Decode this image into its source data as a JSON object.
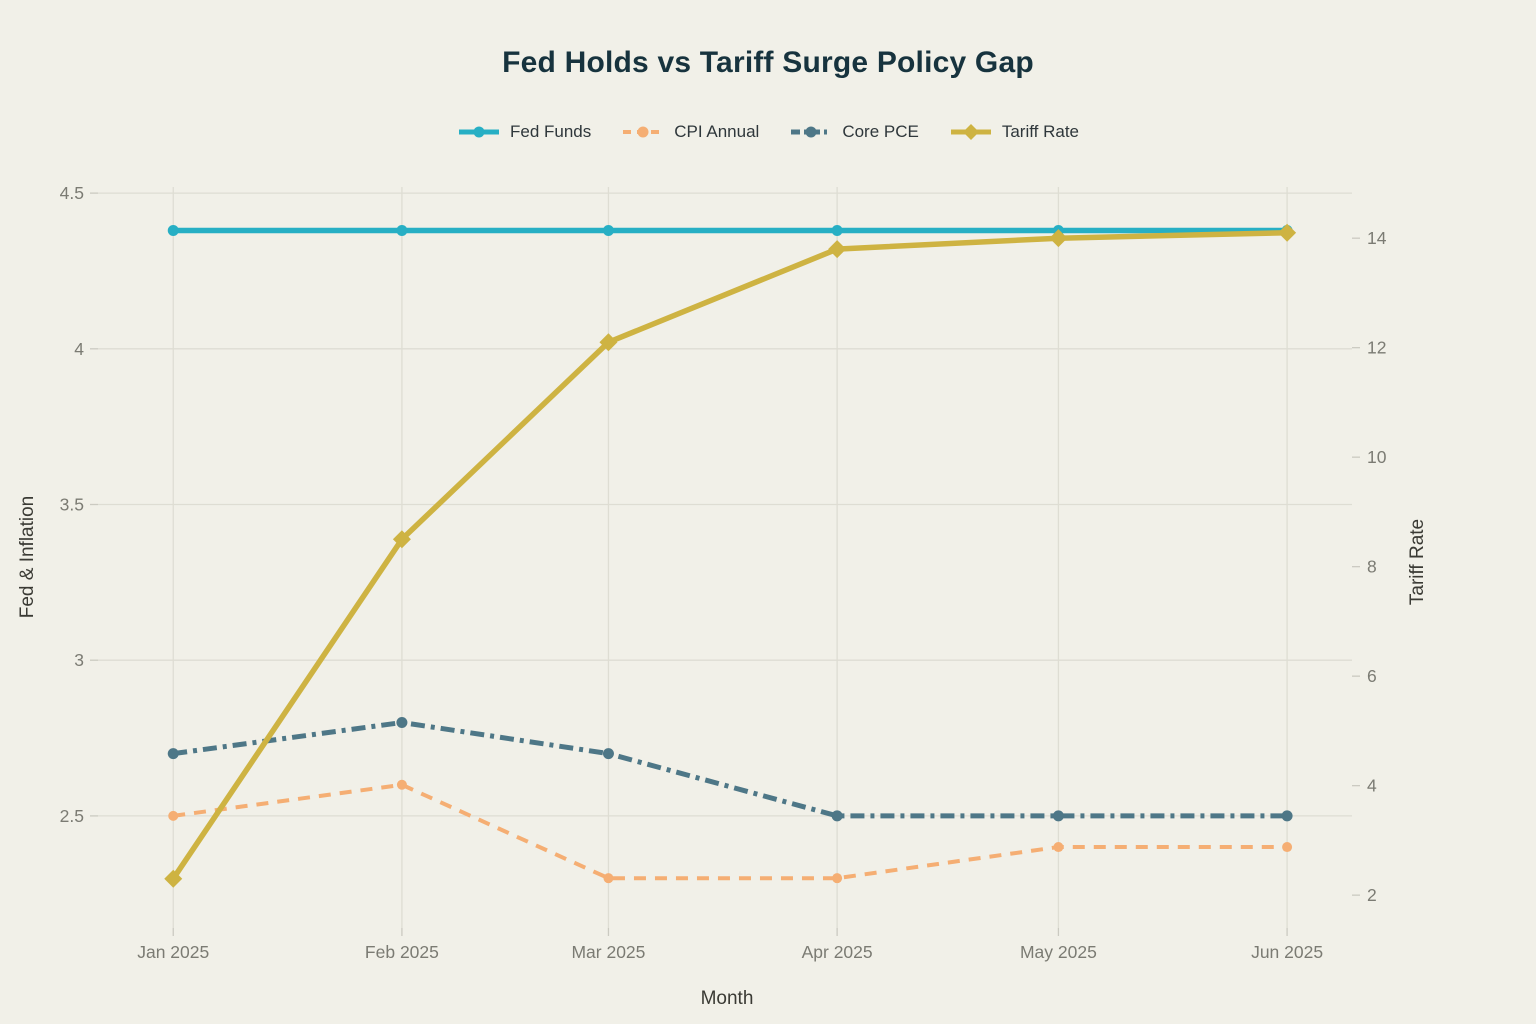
{
  "title": "Fed Holds vs Tariff Surge Policy Gap",
  "colors": {
    "background": "#F1F0E8",
    "title": "#17333E",
    "grid": "#DEDDD3",
    "tick_mark": "#CBCAC1",
    "tick_label": "#7B7B73",
    "axis_title": "#3A3A34",
    "legend_label": "#2F373B",
    "fed_funds": "#27AFC4",
    "cpi_annual": "#F5AE73",
    "core_pce": "#4E7787",
    "tariff_rate": "#CEB342"
  },
  "chart_data": {
    "type": "line",
    "title": "Fed Holds vs Tariff Surge Policy Gap",
    "x_type": "date",
    "categories": [
      "Jan 2025",
      "Feb 2025",
      "Mar 2025",
      "Apr 2025",
      "May 2025",
      "Jun 2025"
    ],
    "x_day_offsets": [
      0,
      31,
      59,
      90,
      120,
      151
    ],
    "xlabel": "Month",
    "ylabel_left": "Fed & Inflation",
    "ylabel_right": "Tariff Rate",
    "y_left_ticks": [
      2.5,
      3,
      3.5,
      4,
      4.5
    ],
    "y_right_ticks": [
      2,
      4,
      6,
      8,
      10,
      12,
      14
    ],
    "y_left_range": [
      2.14,
      4.51
    ],
    "y_right_range": [
      1.4,
      14.88
    ],
    "x_range_days": [
      -10.2,
      159.8
    ],
    "grid": true,
    "legend_position": "top-center",
    "series": [
      {
        "name": "Fed Funds",
        "axis": "left",
        "color": "#27AFC4",
        "dash": "solid",
        "width": 5.5,
        "marker": "circle",
        "marker_size": 5.5,
        "values": [
          4.38,
          4.38,
          4.38,
          4.38,
          4.38,
          4.38
        ]
      },
      {
        "name": "CPI Annual",
        "axis": "left",
        "color": "#F5AE73",
        "dash": "dash",
        "width": 4,
        "marker": "circle",
        "marker_size": 5,
        "values": [
          2.5,
          2.6,
          2.3,
          2.3,
          2.4,
          2.4
        ]
      },
      {
        "name": "Core PCE",
        "axis": "left",
        "color": "#4E7787",
        "dash": "dashdot",
        "width": 5,
        "marker": "circle",
        "marker_size": 5.5,
        "values": [
          2.7,
          2.8,
          2.7,
          2.5,
          2.5,
          2.5
        ]
      },
      {
        "name": "Tariff Rate",
        "axis": "right",
        "color": "#CEB342",
        "dash": "solid",
        "width": 5.5,
        "marker": "diamond",
        "marker_size": 9,
        "values": [
          2.3,
          8.5,
          12.1,
          13.8,
          14,
          14.1
        ]
      }
    ]
  }
}
